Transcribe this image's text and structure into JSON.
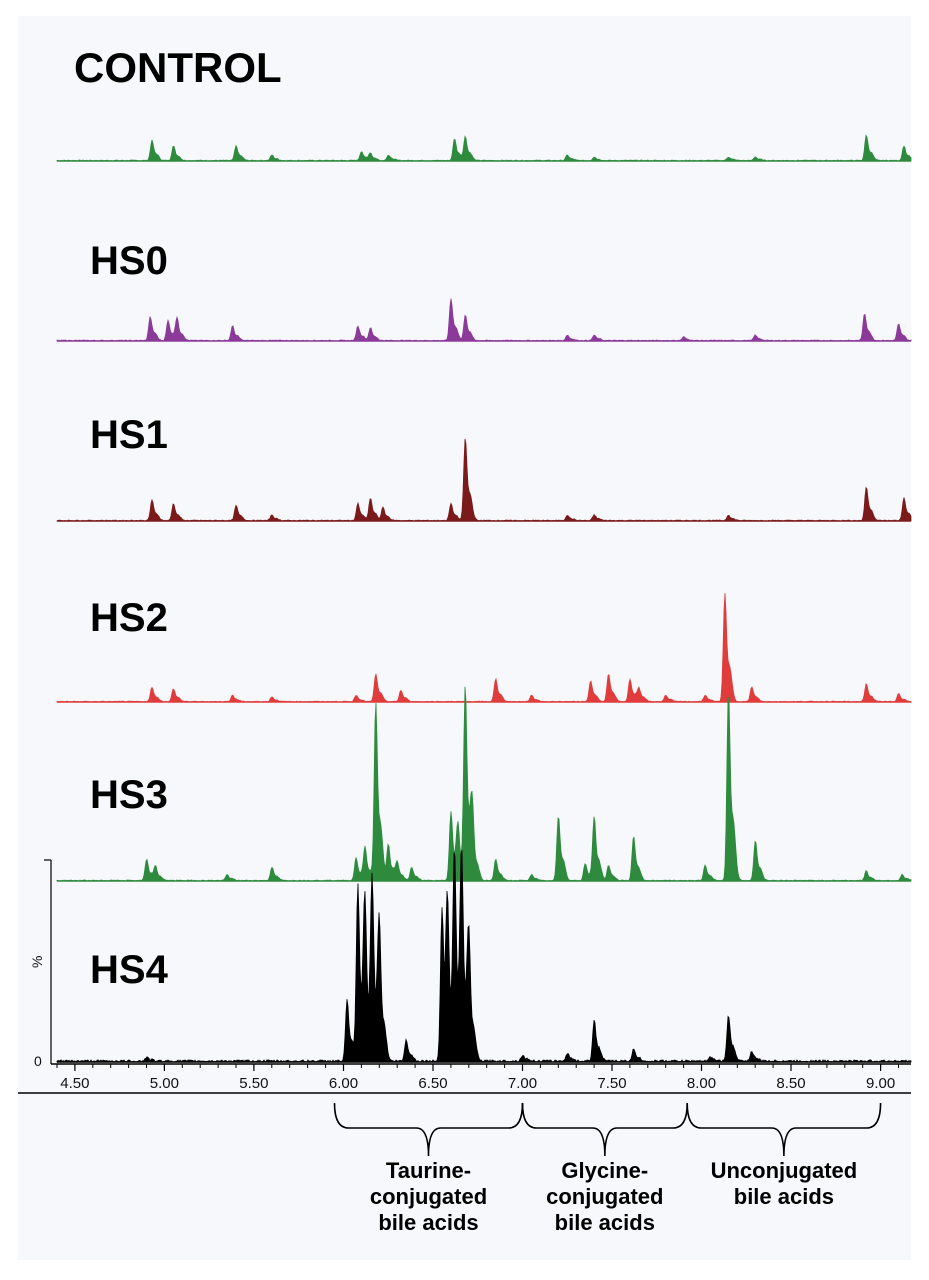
{
  "chart_data": {
    "type": "line",
    "xlim": [
      4.4,
      9.17
    ],
    "x_ticks": [
      "4.50",
      "5.00",
      "5.50",
      "6.00",
      "6.50",
      "7.00",
      "7.50",
      "8.00",
      "8.50",
      "9.00"
    ],
    "y_axis_label": "%",
    "y_zero_label": "0",
    "groups": [
      {
        "label": "Taurine-\nconjugated\nbile acids",
        "x_range": [
          5.95,
          7.0
        ]
      },
      {
        "label": "Glycine-\nconjugated\nbile acids",
        "x_range": [
          7.0,
          7.92
        ]
      },
      {
        "label": "Unconjugated\nbile acids",
        "x_range": [
          7.92,
          9.0
        ]
      }
    ],
    "series": [
      {
        "name": "CONTROL",
        "color": "#2e8b3e",
        "peaks": [
          [
            4.93,
            0.11
          ],
          [
            5.05,
            0.08
          ],
          [
            5.4,
            0.08
          ],
          [
            5.6,
            0.03
          ],
          [
            6.1,
            0.05
          ],
          [
            6.15,
            0.04
          ],
          [
            6.25,
            0.03
          ],
          [
            6.62,
            0.12
          ],
          [
            6.68,
            0.13
          ],
          [
            7.25,
            0.03
          ],
          [
            7.4,
            0.02
          ],
          [
            8.15,
            0.02
          ],
          [
            8.3,
            0.02
          ],
          [
            8.92,
            0.14
          ],
          [
            9.13,
            0.08
          ]
        ]
      },
      {
        "name": "HS0",
        "color": "#8b3a9a",
        "peaks": [
          [
            4.92,
            0.13
          ],
          [
            5.02,
            0.11
          ],
          [
            5.07,
            0.12
          ],
          [
            5.38,
            0.08
          ],
          [
            6.08,
            0.08
          ],
          [
            6.15,
            0.07
          ],
          [
            6.6,
            0.23
          ],
          [
            6.68,
            0.14
          ],
          [
            7.25,
            0.03
          ],
          [
            7.4,
            0.03
          ],
          [
            7.9,
            0.02
          ],
          [
            8.3,
            0.03
          ],
          [
            8.91,
            0.15
          ],
          [
            9.1,
            0.09
          ]
        ]
      },
      {
        "name": "HS1",
        "color": "#7b1a1a",
        "peaks": [
          [
            4.93,
            0.11
          ],
          [
            5.05,
            0.09
          ],
          [
            5.4,
            0.08
          ],
          [
            5.6,
            0.03
          ],
          [
            6.08,
            0.09
          ],
          [
            6.15,
            0.12
          ],
          [
            6.22,
            0.07
          ],
          [
            6.6,
            0.09
          ],
          [
            6.68,
            0.44
          ],
          [
            7.25,
            0.03
          ],
          [
            7.4,
            0.03
          ],
          [
            8.15,
            0.03
          ],
          [
            8.92,
            0.18
          ],
          [
            9.13,
            0.12
          ]
        ]
      },
      {
        "name": "HS2",
        "color": "#e03c3c",
        "peaks": [
          [
            4.93,
            0.09
          ],
          [
            5.05,
            0.08
          ],
          [
            5.38,
            0.04
          ],
          [
            5.6,
            0.03
          ],
          [
            6.07,
            0.04
          ],
          [
            6.18,
            0.17
          ],
          [
            6.32,
            0.07
          ],
          [
            6.85,
            0.14
          ],
          [
            7.05,
            0.04
          ],
          [
            7.38,
            0.13
          ],
          [
            7.48,
            0.17
          ],
          [
            7.6,
            0.14
          ],
          [
            7.65,
            0.08
          ],
          [
            7.8,
            0.04
          ],
          [
            8.02,
            0.04
          ],
          [
            8.13,
            0.67
          ],
          [
            8.28,
            0.09
          ],
          [
            8.92,
            0.11
          ],
          [
            9.1,
            0.05
          ]
        ]
      },
      {
        "name": "HS3",
        "color": "#2e8b3e",
        "peaks": [
          [
            4.9,
            0.11
          ],
          [
            4.95,
            0.07
          ],
          [
            5.35,
            0.03
          ],
          [
            5.6,
            0.07
          ],
          [
            6.07,
            0.12
          ],
          [
            6.12,
            0.17
          ],
          [
            6.18,
            0.93
          ],
          [
            6.25,
            0.19
          ],
          [
            6.3,
            0.09
          ],
          [
            6.38,
            0.07
          ],
          [
            6.6,
            0.36
          ],
          [
            6.64,
            0.24
          ],
          [
            6.68,
            0.98
          ],
          [
            6.72,
            0.27
          ],
          [
            6.85,
            0.11
          ],
          [
            7.05,
            0.03
          ],
          [
            7.2,
            0.34
          ],
          [
            7.35,
            0.09
          ],
          [
            7.4,
            0.33
          ],
          [
            7.48,
            0.08
          ],
          [
            7.62,
            0.23
          ],
          [
            8.02,
            0.08
          ],
          [
            8.15,
            1.0
          ],
          [
            8.3,
            0.21
          ],
          [
            8.92,
            0.05
          ],
          [
            9.12,
            0.03
          ]
        ]
      },
      {
        "name": "HS4",
        "color": "#000000",
        "peaks": [
          [
            4.9,
            0.02
          ],
          [
            6.02,
            0.32
          ],
          [
            6.08,
            0.92
          ],
          [
            6.12,
            0.72
          ],
          [
            6.16,
            0.85
          ],
          [
            6.2,
            0.62
          ],
          [
            6.35,
            0.11
          ],
          [
            6.55,
            0.8
          ],
          [
            6.58,
            0.65
          ],
          [
            6.62,
            1.0
          ],
          [
            6.66,
            0.95
          ],
          [
            6.7,
            0.55
          ],
          [
            7.0,
            0.03
          ],
          [
            7.25,
            0.04
          ],
          [
            7.4,
            0.22
          ],
          [
            7.62,
            0.06
          ],
          [
            8.05,
            0.02
          ],
          [
            8.15,
            0.24
          ],
          [
            8.28,
            0.05
          ]
        ]
      }
    ]
  }
}
